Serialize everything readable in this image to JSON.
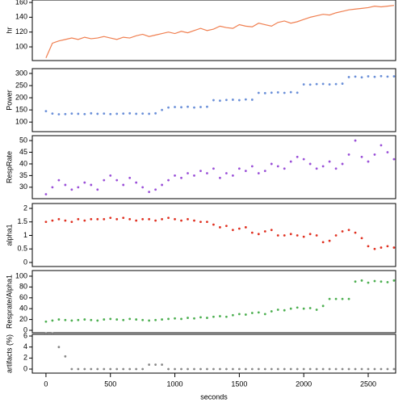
{
  "chart_data": [
    {
      "type": "line",
      "ylabel": "hr",
      "color": "#f07f50",
      "xlim": [
        -106,
        2713
      ],
      "ylim": [
        81.5,
        163.3
      ],
      "yticks": [
        100,
        120,
        140,
        160
      ],
      "x": [
        0,
        50,
        100,
        150,
        200,
        250,
        300,
        350,
        400,
        450,
        500,
        550,
        600,
        650,
        700,
        750,
        800,
        850,
        900,
        950,
        1000,
        1050,
        1100,
        1150,
        1200,
        1250,
        1300,
        1350,
        1400,
        1450,
        1500,
        1550,
        1600,
        1650,
        1700,
        1750,
        1800,
        1850,
        1900,
        1950,
        2000,
        2050,
        2100,
        2150,
        2200,
        2250,
        2300,
        2350,
        2400,
        2450,
        2500,
        2550,
        2600,
        2650,
        2700
      ],
      "values": [
        85,
        105,
        108,
        110,
        112,
        110,
        113,
        111,
        112,
        114,
        112,
        110,
        113,
        112,
        115,
        117,
        114,
        116,
        118,
        120,
        118,
        121,
        119,
        122,
        125,
        122,
        124,
        128,
        126,
        125,
        130,
        128,
        127,
        132,
        130,
        128,
        133,
        135,
        132,
        134,
        137,
        140,
        142,
        144,
        143,
        146,
        148,
        150,
        151,
        152,
        153,
        155,
        154,
        155,
        156
      ]
    },
    {
      "type": "scatter",
      "ylabel": "Power",
      "color": "#6a8fd8",
      "xlim": [
        -106,
        2713
      ],
      "ylim": [
        60.7,
        319.7
      ],
      "yticks": [
        100,
        150,
        200,
        250,
        300
      ],
      "x": [
        0,
        50,
        100,
        150,
        200,
        250,
        300,
        350,
        400,
        450,
        500,
        550,
        600,
        650,
        700,
        750,
        800,
        850,
        900,
        950,
        1000,
        1050,
        1100,
        1150,
        1200,
        1250,
        1300,
        1350,
        1400,
        1450,
        1500,
        1550,
        1600,
        1650,
        1700,
        1750,
        1800,
        1850,
        1900,
        1950,
        2000,
        2050,
        2100,
        2150,
        2200,
        2250,
        2300,
        2350,
        2400,
        2450,
        2500,
        2550,
        2600,
        2650,
        2700
      ],
      "values": [
        145,
        135,
        132,
        133,
        135,
        134,
        133,
        136,
        134,
        135,
        133,
        134,
        135,
        136,
        134,
        135,
        134,
        136,
        150,
        160,
        162,
        161,
        163,
        160,
        162,
        163,
        190,
        188,
        191,
        192,
        190,
        193,
        192,
        220,
        219,
        221,
        222,
        220,
        223,
        221,
        255,
        254,
        256,
        257,
        255,
        256,
        258,
        285,
        287,
        284,
        288,
        286,
        289,
        287,
        288
      ]
    },
    {
      "type": "scatter",
      "ylabel": "RespRate",
      "color": "#9a4fd8",
      "xlim": [
        -106,
        2713
      ],
      "ylim": [
        25.1,
        52.1
      ],
      "yticks": [
        30,
        35,
        40,
        45,
        50
      ],
      "x": [
        0,
        50,
        100,
        150,
        200,
        250,
        300,
        350,
        400,
        450,
        500,
        550,
        600,
        650,
        700,
        750,
        800,
        850,
        900,
        950,
        1000,
        1050,
        1100,
        1150,
        1200,
        1250,
        1300,
        1350,
        1400,
        1450,
        1500,
        1550,
        1600,
        1650,
        1700,
        1750,
        1800,
        1850,
        1900,
        1950,
        2000,
        2050,
        2100,
        2150,
        2200,
        2250,
        2300,
        2350,
        2400,
        2450,
        2500,
        2550,
        2600,
        2650,
        2700
      ],
      "values": [
        27,
        30,
        33,
        31,
        29,
        30,
        32,
        31,
        29,
        33,
        35,
        33,
        31,
        34,
        32,
        30,
        28,
        29,
        31,
        33,
        35,
        34,
        36,
        35,
        37,
        36,
        38,
        34,
        36,
        35,
        38,
        37,
        39,
        36,
        37,
        40,
        39,
        38,
        41,
        43,
        42,
        40,
        38,
        39,
        41,
        38,
        40,
        44,
        50,
        43,
        41,
        44,
        48,
        45,
        42
      ]
    },
    {
      "type": "scatter",
      "ylabel": "alpha1",
      "color": "#e03020",
      "xlim": [
        -106,
        2713
      ],
      "ylim": [
        -0.15,
        2.18
      ],
      "yticks": [
        0,
        0.5,
        1,
        1.5,
        2
      ],
      "x": [
        0,
        50,
        100,
        150,
        200,
        250,
        300,
        350,
        400,
        450,
        500,
        550,
        600,
        650,
        700,
        750,
        800,
        850,
        900,
        950,
        1000,
        1050,
        1100,
        1150,
        1200,
        1250,
        1300,
        1350,
        1400,
        1450,
        1500,
        1550,
        1600,
        1650,
        1700,
        1750,
        1800,
        1850,
        1900,
        1950,
        2000,
        2050,
        2100,
        2150,
        2200,
        2250,
        2300,
        2350,
        2400,
        2450,
        2500,
        2550,
        2600,
        2650,
        2700
      ],
      "values": [
        1.5,
        1.55,
        1.6,
        1.55,
        1.5,
        1.6,
        1.55,
        1.6,
        1.6,
        1.6,
        1.65,
        1.6,
        1.65,
        1.6,
        1.55,
        1.6,
        1.6,
        1.55,
        1.6,
        1.65,
        1.6,
        1.55,
        1.6,
        1.55,
        1.5,
        1.5,
        1.4,
        1.3,
        1.35,
        1.2,
        1.25,
        1.3,
        1.1,
        1.05,
        1.15,
        1.2,
        1.0,
        1.0,
        1.05,
        1.0,
        0.95,
        1.05,
        1.0,
        0.75,
        0.8,
        1.0,
        1.15,
        1.2,
        1.1,
        0.9,
        0.6,
        0.5,
        0.55,
        0.6,
        0.55
      ]
    },
    {
      "type": "scatter",
      "ylabel": "Resprate/Alpha1",
      "color": "#4caf50",
      "xlim": [
        -106,
        2713
      ],
      "ylim": [
        -4.5,
        110.4
      ],
      "yticks": [
        0,
        20,
        40,
        60,
        80,
        100
      ],
      "x": [
        0,
        50,
        100,
        150,
        200,
        250,
        300,
        350,
        400,
        450,
        500,
        550,
        600,
        650,
        700,
        750,
        800,
        850,
        900,
        950,
        1000,
        1050,
        1100,
        1150,
        1200,
        1250,
        1300,
        1350,
        1400,
        1450,
        1500,
        1550,
        1600,
        1650,
        1700,
        1750,
        1800,
        1850,
        1900,
        1950,
        2000,
        2050,
        2100,
        2150,
        2200,
        2250,
        2300,
        2350,
        2400,
        2450,
        2500,
        2550,
        2600,
        2650,
        2700
      ],
      "values": [
        16,
        18,
        20,
        19,
        18,
        19,
        20,
        19,
        18,
        20,
        21,
        20,
        19,
        21,
        20,
        19,
        18,
        19,
        20,
        21,
        22,
        21,
        23,
        22,
        24,
        23,
        25,
        26,
        25,
        28,
        30,
        29,
        32,
        33,
        30,
        35,
        38,
        37,
        40,
        42,
        40,
        41,
        38,
        45,
        58,
        58,
        58,
        58,
        90,
        92,
        88,
        91,
        90,
        89,
        92
      ]
    },
    {
      "type": "scatter",
      "ylabel": "artifacts (%)",
      "color": "#888888",
      "xlim": [
        -106,
        2713
      ],
      "ylim": [
        -0.73,
        6.3
      ],
      "yticks": [
        0,
        2,
        4,
        6
      ],
      "xticks": [
        0,
        500,
        1000,
        1500,
        2000,
        2500
      ],
      "xlabel": "seconds",
      "x": [
        0,
        50,
        100,
        150,
        200,
        250,
        300,
        350,
        400,
        450,
        500,
        550,
        600,
        650,
        700,
        750,
        800,
        850,
        900,
        950,
        1000,
        1050,
        1100,
        1150,
        1200,
        1250,
        1300,
        1350,
        1400,
        1450,
        1500,
        1550,
        1600,
        1650,
        1700,
        1750,
        1800,
        1850,
        1900,
        1950,
        2000,
        2050,
        2100,
        2150,
        2200,
        2250,
        2300,
        2350,
        2400,
        2450,
        2500,
        2550,
        2600,
        2650,
        2700
      ],
      "values": [
        6.5,
        6.5,
        4,
        2.3,
        0,
        0,
        0,
        0,
        0,
        0,
        0,
        0,
        0,
        0,
        0,
        0,
        0.8,
        0.8,
        0.8,
        0,
        0,
        0,
        0,
        0,
        0,
        0,
        0,
        0,
        0,
        0,
        0,
        0,
        0,
        0,
        0,
        0,
        0,
        0,
        0,
        0,
        0,
        0,
        0,
        0,
        0,
        0,
        0,
        0,
        0,
        0,
        0,
        0,
        0,
        0,
        0
      ]
    }
  ]
}
